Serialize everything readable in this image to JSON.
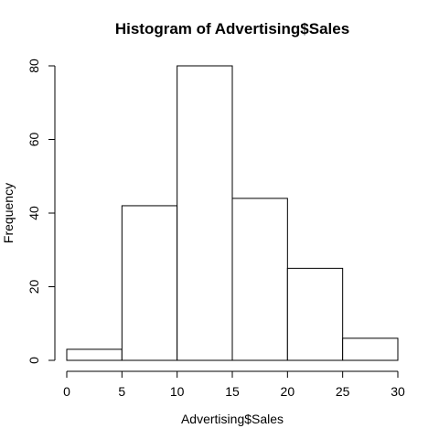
{
  "chart_data": {
    "type": "bar",
    "title": "Histogram of Advertising$Sales",
    "xlabel": "Advertising$Sales",
    "ylabel": "Frequency",
    "bins": [
      {
        "start": 0,
        "end": 5,
        "value": 3
      },
      {
        "start": 5,
        "end": 10,
        "value": 42
      },
      {
        "start": 10,
        "end": 15,
        "value": 80
      },
      {
        "start": 15,
        "end": 20,
        "value": 44
      },
      {
        "start": 20,
        "end": 25,
        "value": 25
      },
      {
        "start": 25,
        "end": 30,
        "value": 6
      }
    ],
    "xlim": [
      0,
      30
    ],
    "ylim": [
      0,
      80
    ],
    "x_ticks": [
      "0",
      "5",
      "10",
      "15",
      "20",
      "25",
      "30"
    ],
    "y_ticks": [
      "0",
      "20",
      "40",
      "60",
      "80"
    ],
    "grid": false,
    "colors": {
      "bar_fill": "#ffffff",
      "bar_stroke": "#000000"
    }
  }
}
